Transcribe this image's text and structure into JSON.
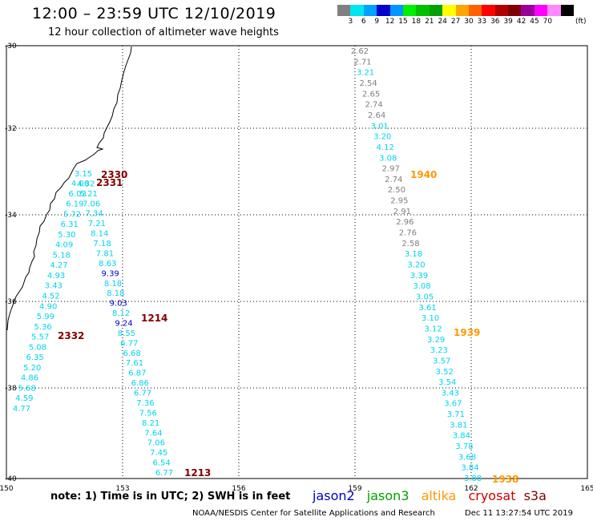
{
  "header": {
    "title": "12:00 – 23:59 UTC 12/10/2019",
    "subtitle": "12 hour collection of altimeter wave heights"
  },
  "colorbar": {
    "colors": [
      "#808080",
      "#00e5ee",
      "#00a0ff",
      "#0000cd",
      "#0096ff",
      "#00ee00",
      "#00c000",
      "#00a000",
      "#ffff00",
      "#ffa500",
      "#ff6000",
      "#ff0000",
      "#b00000",
      "#800000",
      "#990099",
      "#ff00ff",
      "#ff88ff",
      "#000000"
    ],
    "labels": [
      "3",
      "6",
      "9",
      "12",
      "15",
      "18",
      "21",
      "24",
      "27",
      "30",
      "33",
      "36",
      "39",
      "42",
      "45",
      "70"
    ],
    "unit": "(ft)"
  },
  "axes": {
    "lon_labels": [
      "150",
      "153",
      "156",
      "159",
      "162",
      "165"
    ],
    "lat_labels": [
      "-30",
      "-32",
      "-34",
      "-36",
      "-38",
      "-40"
    ]
  },
  "colors": {
    "gray": "#7f7f7f",
    "cyan": "#00d4ee",
    "blue": "#0000cd",
    "darkred": "#800000",
    "orange": "#ff9900"
  },
  "tracks": {
    "west_outer": [
      "3.15",
      "4.32",
      "5.21",
      "7.06",
      "7.34",
      "7.21",
      "8.14",
      "7.18",
      "7.81",
      "8.63",
      "9.39",
      "8.18",
      "8.18",
      "9.03",
      "8.12",
      "9.24",
      "8.55",
      "6.77",
      "6.68",
      "7.61",
      "6.87",
      "6.86",
      "6.77",
      "7.36",
      "7.56",
      "8.21",
      "7.64",
      "7.06",
      "7.45",
      "6.54",
      "6.77"
    ],
    "west_inner": [
      "4.06",
      "6.03",
      "6.19",
      "5.72",
      "6.31",
      "5.30",
      "4.09",
      "5.18",
      "4.27",
      "4.93",
      "3.43",
      "4.52",
      "4.90",
      "5.99",
      "5.36",
      "5.57",
      "5.08",
      "6.35",
      "5.20",
      "4.86",
      "5.68",
      "4.59",
      "4.77"
    ],
    "east": [
      "2.62",
      "2.71",
      "3.21",
      "2.54",
      "2.65",
      "2.74",
      "2.64",
      "3.01",
      "3.20",
      "4.12",
      "3.08",
      "2.97",
      "2.74",
      "2.50",
      "2.95",
      "2.91",
      "2.96",
      "2.76",
      "2.58",
      "3.18",
      "3.20",
      "3.39",
      "3.08",
      "3.05",
      "3.61",
      "3.10",
      "3.12",
      "3.29",
      "3.23",
      "3.57",
      "3.52",
      "3.54",
      "3.43",
      "3.67",
      "3.71",
      "3.81",
      "3.84",
      "3.78",
      "3.68",
      "3.84",
      "3.88"
    ]
  },
  "time_labels": [
    "2330",
    "2331",
    "1214",
    "2332",
    "1213",
    "1940",
    "1939",
    "1938"
  ],
  "legend": {
    "note": "note: 1) Time is in UTC; 2) SWH is in feet",
    "jason2": "jason2",
    "jason3": "jason3",
    "altika": "altika",
    "cryosat": "cryosat",
    "s3a": "s3a"
  },
  "footer": {
    "credit": "NOAA/NESDIS Center for Satellite Applications and Research",
    "timestamp": "Dec 11 13:27:54 UTC 2019"
  }
}
